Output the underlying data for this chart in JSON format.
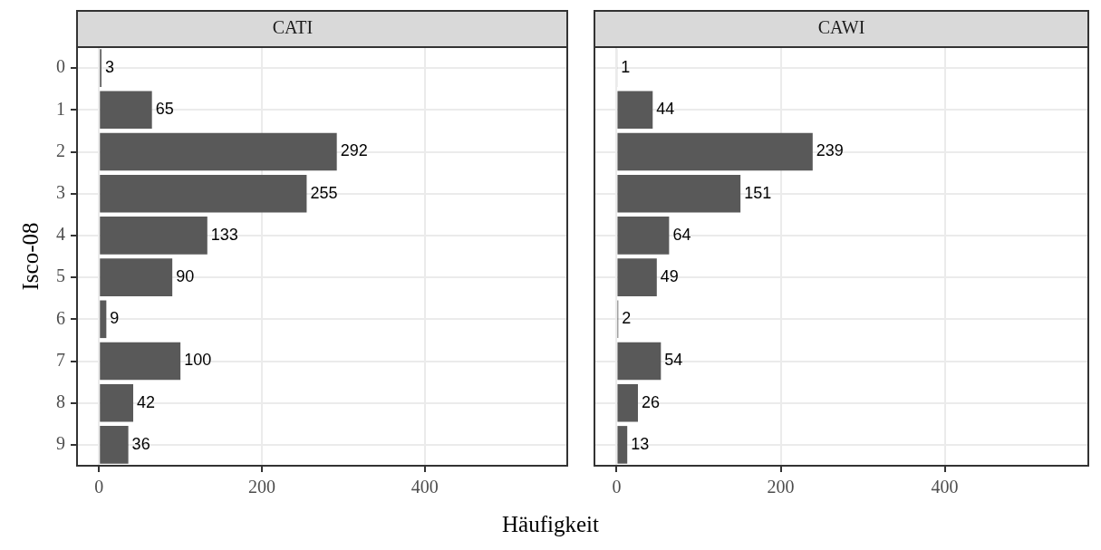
{
  "chart_data": [
    {
      "type": "bar",
      "orientation": "horizontal",
      "title": "CATI",
      "ylabel": "Isco-08",
      "xlabel": "Häufigkeit",
      "categories": [
        "0",
        "1",
        "2",
        "3",
        "4",
        "5",
        "6",
        "7",
        "8",
        "9"
      ],
      "values": [
        3,
        65,
        292,
        255,
        133,
        90,
        9,
        100,
        42,
        36
      ],
      "color": "#595959",
      "xlim": [
        -27,
        575
      ],
      "xticks": [
        0,
        200,
        400
      ],
      "grid": true,
      "data_labels": true
    },
    {
      "type": "bar",
      "orientation": "horizontal",
      "title": "CAWI",
      "categories": [
        "0",
        "1",
        "2",
        "3",
        "4",
        "5",
        "6",
        "7",
        "8",
        "9"
      ],
      "values": [
        1,
        44,
        239,
        151,
        64,
        49,
        2,
        54,
        26,
        13
      ],
      "color": "#595959",
      "xlim": [
        -27,
        575
      ],
      "xticks": [
        0,
        200,
        400
      ],
      "grid": true,
      "data_labels": true,
      "tick_labels": "x"
    }
  ]
}
